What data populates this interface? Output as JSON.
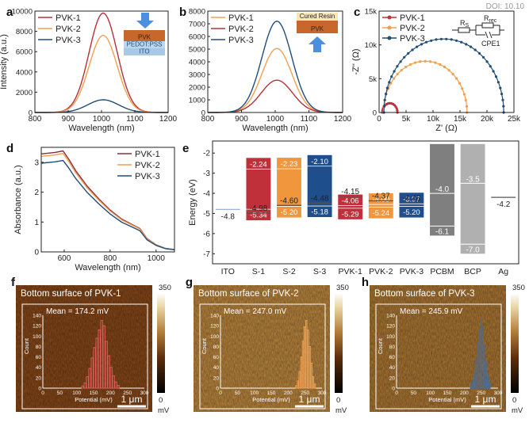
{
  "doi_fragment": "DOI: 10.10",
  "chart_data": [
    {
      "panel": "a",
      "type": "line",
      "xlabel": "Wavelength (nm)",
      "ylabel": "Intensity (a.u.)",
      "xlim": [
        800,
        1200
      ],
      "ylim": [
        0,
        10000
      ],
      "xticks": [
        800,
        900,
        1000,
        1100,
        1200
      ],
      "yticks": [
        0,
        2000,
        4000,
        6000,
        8000,
        10000
      ],
      "legend": "top-left",
      "series": [
        {
          "name": "PVK-1",
          "color": "#b5313a",
          "peak_x": 1005,
          "peak_y": 9800,
          "width": 40
        },
        {
          "name": "PVK-2",
          "color": "#f0a050",
          "peak_x": 1005,
          "peak_y": 7600,
          "width": 40
        },
        {
          "name": "PVK-3",
          "color": "#1f4e79",
          "peak_x": 1005,
          "peak_y": 1250,
          "width": 44
        }
      ],
      "inset": {
        "layers": [
          "PVK",
          "PEDOT:PSS",
          "ITO"
        ],
        "colors": [
          "#c8672c",
          "#bcd6ee",
          "#a8c8e6"
        ],
        "arrow": "down"
      }
    },
    {
      "panel": "b",
      "type": "line",
      "xlabel": "Wavelength (nm)",
      "ylabel": "",
      "xlim": [
        800,
        1200
      ],
      "ylim": [
        0,
        8000
      ],
      "xticks": [
        800,
        900,
        1000,
        1100,
        1200
      ],
      "yticks": [
        0,
        1000,
        2000,
        3000,
        4000,
        5000,
        6000,
        7000,
        8000
      ],
      "legend": "top-left",
      "series": [
        {
          "name": "PVK-1",
          "color": "#f0a050",
          "peak_x": 1005,
          "peak_y": 5050,
          "width": 42
        },
        {
          "name": "PVK-2",
          "color": "#b5313a",
          "peak_x": 1005,
          "peak_y": 2550,
          "width": 44
        },
        {
          "name": "PVK-3",
          "color": "#1f4e79",
          "peak_x": 1005,
          "peak_y": 7200,
          "width": 42
        }
      ],
      "inset": {
        "layers": [
          "Cured Resin",
          "PVK"
        ],
        "colors": [
          "#f6e7b8",
          "#c8672c"
        ],
        "arrow": "up"
      }
    },
    {
      "panel": "c",
      "type": "scatter",
      "xlabel": "Z' (Ω)",
      "ylabel": "-Z'' (Ω)",
      "xlim": [
        0,
        25000
      ],
      "ylim": [
        0,
        15000
      ],
      "xticks": [
        0,
        5000,
        10000,
        15000,
        20000,
        25000
      ],
      "xtick_labels": [
        "0",
        "5k",
        "10k",
        "15k",
        "20k",
        "25k"
      ],
      "yticks": [
        0,
        5000,
        10000,
        15000
      ],
      "ytick_labels": [
        "0",
        "5k",
        "10k",
        "15k"
      ],
      "legend": "top-left",
      "series": [
        {
          "name": "PVK-1",
          "color": "#c0303a",
          "r0": 600,
          "diameter": 2800
        },
        {
          "name": "PVK-2",
          "color": "#f0a050",
          "r0": 800,
          "diameter": 15500
        },
        {
          "name": "PVK-3",
          "color": "#1f4e79",
          "r0": 900,
          "diameter": 22200
        }
      ],
      "circuit": {
        "rs": "R",
        "rs_sub": "S",
        "rrec": "R",
        "rrec_sub": "rec",
        "cpe": "CPE1"
      }
    },
    {
      "panel": "d",
      "type": "line",
      "xlabel": "Wavelength (nm)",
      "ylabel": "Absorbance (a.u.)",
      "xlim": [
        500,
        1080
      ],
      "ylim": [
        0,
        3.5
      ],
      "xticks": [
        600,
        800,
        1000
      ],
      "yticks": [
        0,
        1,
        2,
        3
      ],
      "legend": "top-right",
      "series": [
        {
          "name": "PVK-1",
          "color": "#8b2e3a",
          "scale": 1.0
        },
        {
          "name": "PVK-2",
          "color": "#f0a050",
          "scale": 0.975
        },
        {
          "name": "PVK-3",
          "color": "#1f4e79",
          "scale": 0.905
        }
      ],
      "profile_x": [
        500,
        560,
        595,
        620,
        650,
        700,
        750,
        800,
        850,
        900,
        930,
        960,
        1000,
        1040,
        1080
      ],
      "profile_y": [
        3.28,
        3.33,
        3.38,
        3.1,
        2.72,
        2.2,
        1.78,
        1.4,
        1.1,
        0.9,
        0.78,
        0.45,
        0.24,
        0.12,
        0.08
      ]
    },
    {
      "panel": "e",
      "type": "bar",
      "ylabel": "Energy (eV)",
      "ylim": [
        -7.5,
        -1.4
      ],
      "yticks": [
        -2,
        -3,
        -4,
        -5,
        -6,
        -7
      ],
      "categories": [
        "ITO",
        "S-1",
        "S-2",
        "S-3",
        "PVK-1",
        "PVK-2",
        "PVK-3",
        "PCBM",
        "BCP",
        "Ag"
      ],
      "bars": [
        {
          "cat": "S-1",
          "top": -2.24,
          "bottom": -5.34,
          "color": "#c0303a",
          "top_label": "-2.24",
          "bottom_label": "-5.34",
          "inner_top": true,
          "inner_bottom": true
        },
        {
          "cat": "S-2",
          "top": -2.23,
          "bottom": -5.2,
          "color": "#f0963c",
          "top_label": "-2.23",
          "bottom_label": "-5.20",
          "inner_top": true,
          "inner_bottom": true
        },
        {
          "cat": "S-3",
          "top": -2.1,
          "bottom": -5.18,
          "color": "#1f4e8c",
          "top_label": "-2.10",
          "bottom_label": "-5.18",
          "inner_top": true,
          "inner_bottom": true
        },
        {
          "cat": "PVK-1",
          "top": -4.06,
          "bottom": -5.29,
          "color": "#c0303a",
          "top_label": "-4.06",
          "bottom_label": "-5.29",
          "inner_top": true,
          "inner_bottom": true
        },
        {
          "cat": "PVK-2",
          "top": -4.0,
          "bottom": -5.24,
          "color": "#f0963c",
          "top_label": "-4.00",
          "bottom_label": "-5.24",
          "inner_top": true,
          "inner_bottom": true
        },
        {
          "cat": "PVK-3",
          "top": -3.97,
          "bottom": -5.2,
          "color": "#1f4e8c",
          "top_label": "-3.97",
          "bottom_label": "-5.20",
          "inner_top": true,
          "inner_bottom": true
        },
        {
          "cat": "PCBM",
          "top": -1.55,
          "bottom": -6.1,
          "color": "#7f7f7f",
          "top_label": "-4.0",
          "bottom_label": "-6.1",
          "inner_top": true,
          "inner_bottom": true,
          "label_top_at": -4.0,
          "label_bottom_at": -6.1,
          "split": -4.0
        },
        {
          "cat": "BCP",
          "top": -1.55,
          "bottom": -7.0,
          "color": "#b0b0b0",
          "top_label": "-3.5",
          "bottom_label": "-7.0",
          "inner_top": true,
          "inner_bottom": true,
          "label_top_at": -3.5,
          "label_bottom_at": -7.0,
          "split": -3.5
        }
      ],
      "levels": [
        {
          "cat": "ITO",
          "value": -4.8,
          "label": "-4.8",
          "color": "#9ab3d6"
        },
        {
          "cat": "S-1",
          "value": -4.98,
          "label": "-4.98",
          "color": "#555"
        },
        {
          "cat": "S-2",
          "value": -4.6,
          "label": "-4.60",
          "color": "#555"
        },
        {
          "cat": "S-3",
          "value": -4.48,
          "label": "-4.48",
          "color": "#555"
        },
        {
          "cat": "PVK-1",
          "value": -4.15,
          "label": "-4.15",
          "color": "#555"
        },
        {
          "cat": "PVK-2",
          "value": -4.37,
          "label": "-4.37",
          "color": "#555"
        },
        {
          "cat": "PVK-3",
          "value": -4.48,
          "label": "-4.48",
          "color": "#555"
        },
        {
          "cat": "Ag",
          "value": -4.2,
          "label": "-4.2",
          "color": "#555"
        }
      ]
    },
    {
      "panel": "f",
      "type": "heatmap",
      "title": "Bottom surface of PVK-1",
      "mean_label": "Mean = 174.2 mV",
      "histogram": {
        "xlabel": "Potential (mV)",
        "ylabel": "Count",
        "xticks": [
          0,
          50,
          100,
          150,
          200,
          250,
          300
        ],
        "yticks": [
          0,
          20,
          40,
          60,
          80,
          100,
          120,
          140
        ],
        "bins_start": 115,
        "bin_width": 7,
        "counts": [
          4,
          10,
          22,
          38,
          58,
          78,
          96,
          112,
          130,
          120,
          90,
          62,
          40,
          24,
          12,
          5
        ],
        "color": "#e25a5a"
      },
      "colorbar": {
        "max": "350",
        "min": "0",
        "unit": "mV"
      },
      "scalebar": "1 μm",
      "base_color": "#8a4a1a"
    },
    {
      "panel": "g",
      "type": "heatmap",
      "title": "Bottom surface of PVK-2",
      "mean_label": "Mean = 247.0 mV",
      "histogram": {
        "xlabel": "Potential (mV)",
        "ylabel": "Count",
        "xticks": [
          0,
          50,
          100,
          150,
          200,
          250,
          300
        ],
        "yticks": [
          0,
          20,
          40,
          60,
          80,
          100,
          120,
          140
        ],
        "bins_start": 222,
        "bin_width": 5,
        "counts": [
          5,
          14,
          32,
          60,
          90,
          118,
          130,
          112,
          80,
          48,
          22,
          8
        ],
        "color": "#f0a050"
      },
      "colorbar": {
        "max": "350",
        "min": "0",
        "unit": "mV"
      },
      "scalebar": "1 μm",
      "base_color": "#c08a40"
    },
    {
      "panel": "h",
      "type": "heatmap",
      "title": "Bottom surface of PVK-3",
      "mean_label": "Mean = 245.9 mV",
      "histogram": {
        "xlabel": "Potential (mV)",
        "ylabel": "Count",
        "xticks": [
          0,
          50,
          100,
          150,
          200,
          250,
          300
        ],
        "yticks": [
          0,
          20,
          40,
          60,
          80,
          100,
          120,
          140
        ],
        "bins_start": 218,
        "bin_width": 5,
        "counts": [
          4,
          12,
          28,
          55,
          88,
          112,
          132,
          118,
          84,
          50,
          24,
          8
        ],
        "color": "#3a6fb0"
      },
      "colorbar": {
        "max": "350",
        "min": "0",
        "unit": "mV"
      },
      "scalebar": "1 μm",
      "base_color": "#b07a35"
    }
  ],
  "panel_letters": [
    "a",
    "b",
    "c",
    "d",
    "e",
    "f",
    "g",
    "h"
  ]
}
